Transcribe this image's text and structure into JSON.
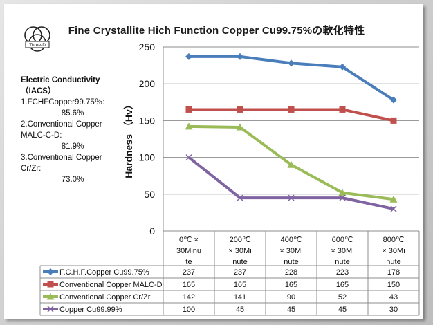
{
  "title": "Fine Crystallite Hich Function Copper Cu99.75%の軟化特性",
  "logo_text": "Three-D",
  "notes": {
    "heading1": "Electric Conductivity",
    "heading2": "（IACS）",
    "items": [
      {
        "label": "1.FCHFCopper99.75％:",
        "value": "85.6%"
      },
      {
        "label": "2.Conventional Copper MALC-C-D:",
        "value": "81.9%"
      },
      {
        "label": "3.Conventional Copper Cr/Zr:",
        "value": "73.0%"
      }
    ]
  },
  "chart_data": {
    "type": "line",
    "title": "Fine Crystallite Hich Function Copper Cu99.75%の軟化特性",
    "ylabel": "Hardness （Hv）",
    "xlabel": "",
    "ylim": [
      0,
      250
    ],
    "yticks": [
      0,
      50,
      100,
      150,
      200,
      250
    ],
    "grid": true,
    "legend": "table-below",
    "categories": [
      [
        "0℃ ×",
        "30Minu",
        "te"
      ],
      [
        "200℃",
        "× 30Mi",
        "nute"
      ],
      [
        "400℃",
        "× 30Mi",
        "nute"
      ],
      [
        "600℃",
        "× 30Mi",
        "nute"
      ],
      [
        "800℃",
        "× 30Mi",
        "nute"
      ]
    ],
    "series": [
      {
        "name": "F.C.H.F.Copper Cu99.75%",
        "values": [
          237,
          237,
          228,
          223,
          178
        ],
        "color": "#4a7ebb",
        "marker": "diamond"
      },
      {
        "name": "Conventional Copper MALC-D",
        "values": [
          165,
          165,
          165,
          165,
          150
        ],
        "color": "#c0504d",
        "marker": "square"
      },
      {
        "name": "Conventional Copper Cr/Zr",
        "values": [
          142,
          141,
          90,
          52,
          43
        ],
        "color": "#9bbb59",
        "marker": "triangle"
      },
      {
        "name": "Copper Cu99.99%",
        "values": [
          100,
          45,
          45,
          45,
          30
        ],
        "color": "#8064a2",
        "marker": "x"
      }
    ]
  }
}
